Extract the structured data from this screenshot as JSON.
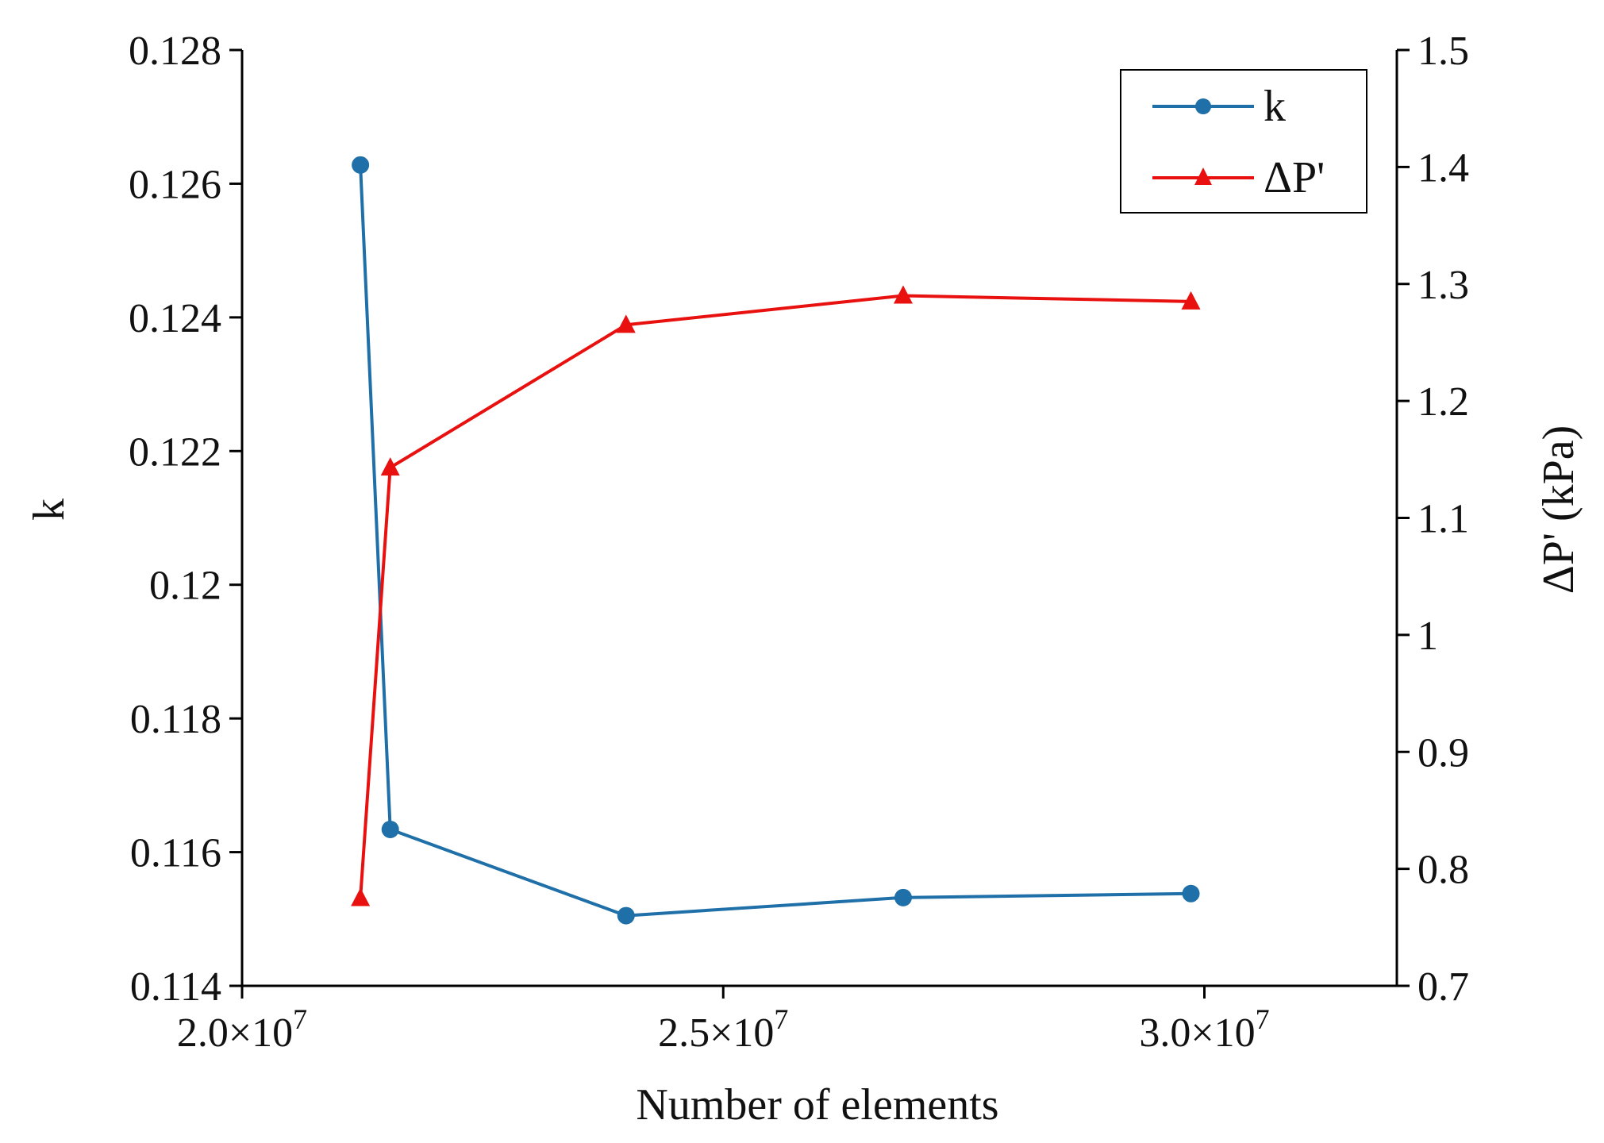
{
  "chart_data": {
    "type": "line",
    "title": "",
    "xlabel": "Number of elements",
    "ylabel_left": "k",
    "ylabel_right": "ΔP' (kPa)",
    "xlim": [
      20000000,
      32000000
    ],
    "ylim_left": [
      0.114,
      0.128
    ],
    "ylim_right": [
      0.7,
      1.5
    ],
    "x_ticks": [
      {
        "value": 20000000,
        "mantissa": "2.0×10",
        "exp": "7"
      },
      {
        "value": 25000000,
        "mantissa": "2.5×10",
        "exp": "7"
      },
      {
        "value": 30000000,
        "mantissa": "3.0×10",
        "exp": "7"
      }
    ],
    "y_ticks_left": [
      {
        "value": 0.114,
        "label": "0.114"
      },
      {
        "value": 0.116,
        "label": "0.116"
      },
      {
        "value": 0.118,
        "label": "0.118"
      },
      {
        "value": 0.12,
        "label": "0.12"
      },
      {
        "value": 0.122,
        "label": "0.122"
      },
      {
        "value": 0.124,
        "label": "0.124"
      },
      {
        "value": 0.126,
        "label": "0.126"
      },
      {
        "value": 0.128,
        "label": "0.128"
      }
    ],
    "y_ticks_right": [
      {
        "value": 0.7,
        "label": "0.7"
      },
      {
        "value": 0.8,
        "label": "0.8"
      },
      {
        "value": 0.9,
        "label": "0.9"
      },
      {
        "value": 1.0,
        "label": "1"
      },
      {
        "value": 1.1,
        "label": "1.1"
      },
      {
        "value": 1.2,
        "label": "1.2"
      },
      {
        "value": 1.3,
        "label": "1.3"
      },
      {
        "value": 1.4,
        "label": "1.4"
      },
      {
        "value": 1.5,
        "label": "1.5"
      }
    ],
    "series": [
      {
        "name": "k",
        "axis": "left",
        "color": "#1f6fa8",
        "marker": "circle",
        "x": [
          21230000,
          21540000,
          23990000,
          26870000,
          29860000
        ],
        "y": [
          0.12628,
          0.11634,
          0.11505,
          0.11532,
          0.11538
        ]
      },
      {
        "name": "ΔP'",
        "axis": "right",
        "color": "#e8110f",
        "marker": "triangle",
        "x": [
          21230000,
          21540000,
          23990000,
          26870000,
          29860000
        ],
        "y": [
          0.775,
          1.143,
          1.265,
          1.29,
          1.285
        ]
      }
    ],
    "legend": {
      "position": "top-right"
    }
  }
}
